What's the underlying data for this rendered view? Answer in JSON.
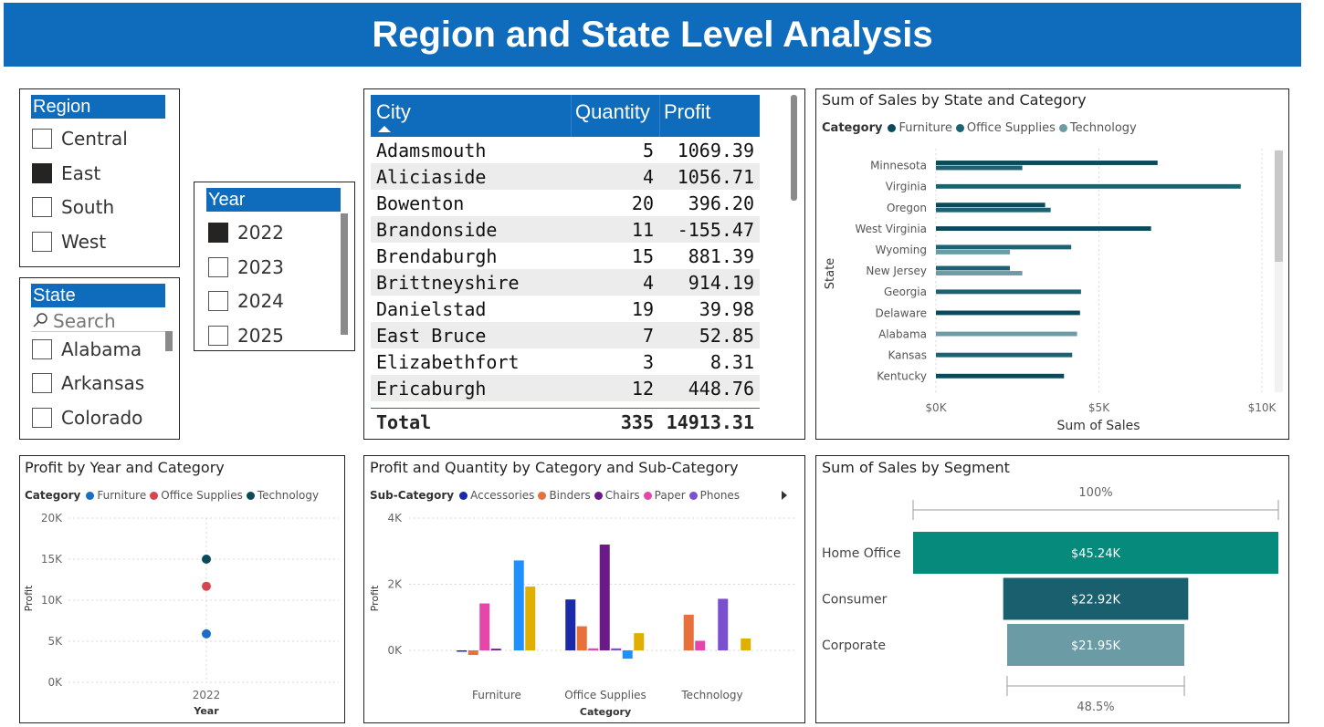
{
  "header": {
    "title": "Region and State Level Analysis"
  },
  "region_slicer": {
    "title": "Region",
    "items": [
      {
        "label": "Central",
        "checked": false
      },
      {
        "label": "East",
        "checked": true
      },
      {
        "label": "South",
        "checked": false
      },
      {
        "label": "West",
        "checked": false
      }
    ]
  },
  "year_slicer": {
    "title": "Year",
    "items": [
      {
        "label": "2022",
        "checked": true
      },
      {
        "label": "2023",
        "checked": false
      },
      {
        "label": "2024",
        "checked": false
      },
      {
        "label": "2025",
        "checked": false
      }
    ]
  },
  "state_slicer": {
    "title": "State",
    "search_placeholder": "Search",
    "items": [
      {
        "label": "Alabama",
        "checked": false
      },
      {
        "label": "Arkansas",
        "checked": false
      },
      {
        "label": "Colorado",
        "checked": false
      }
    ]
  },
  "city_table": {
    "columns": [
      "City",
      "Quantity",
      "Profit"
    ],
    "rows": [
      [
        "Adamsmouth",
        "5",
        "1069.39"
      ],
      [
        "Aliciaside",
        "4",
        "1056.71"
      ],
      [
        "Bowenton",
        "20",
        "396.20"
      ],
      [
        "Brandonside",
        "11",
        "-155.47"
      ],
      [
        "Brendaburgh",
        "15",
        "881.39"
      ],
      [
        "Brittneyshire",
        "4",
        "914.19"
      ],
      [
        "Danielstad",
        "19",
        "39.98"
      ],
      [
        "East Bruce",
        "7",
        "52.85"
      ],
      [
        "Elizabethfort",
        "3",
        "8.31"
      ],
      [
        "Ericaburgh",
        "12",
        "448.76"
      ]
    ],
    "total": {
      "label": "Total",
      "quantity": "335",
      "profit": "14913.31"
    }
  },
  "colors": {
    "title_bg": "#0f6cbd",
    "furniture_state": "#0b4a5a",
    "office_state": "#1d6272",
    "technology_state": "#6b9ba5",
    "furniture_dot": "#1a6fc4",
    "office_dot": "#d64550",
    "technology_dot": "#0b4a5a"
  },
  "chart_data": [
    {
      "id": "sales_by_state",
      "type": "bar",
      "orientation": "horizontal",
      "title": "Sum of Sales by State and Category",
      "legend_title": "Category",
      "xlabel": "Sum of Sales",
      "ylabel": "State",
      "xticks": [
        "$0K",
        "$5K",
        "$10K"
      ],
      "xlim": [
        0,
        10000
      ],
      "categories": [
        "Minnesota",
        "Virginia",
        "Oregon",
        "West Virginia",
        "Wyoming",
        "New Jersey",
        "Georgia",
        "Delaware",
        "Alabama",
        "Kansas",
        "Kentucky"
      ],
      "series": [
        {
          "name": "Furniture",
          "color": "#0b4a5a",
          "values": [
            6800,
            null,
            3350,
            6600,
            null,
            null,
            null,
            4420,
            null,
            null,
            3930
          ]
        },
        {
          "name": "Office Supplies",
          "color": "#1d6272",
          "values": [
            2650,
            9350,
            3520,
            null,
            4150,
            2270,
            4450,
            null,
            null,
            4180,
            null
          ]
        },
        {
          "name": "Technology",
          "color": "#6b9ba5",
          "values": [
            null,
            null,
            null,
            null,
            2270,
            2650,
            null,
            null,
            4330,
            null,
            null
          ]
        }
      ]
    },
    {
      "id": "profit_by_year",
      "type": "scatter",
      "title": "Profit by Year and Category",
      "legend_title": "Category",
      "xlabel": "Year",
      "ylabel": "Profit",
      "categories": [
        "2022"
      ],
      "yticks": [
        "0K",
        "5K",
        "10K",
        "15K",
        "20K"
      ],
      "ylim": [
        0,
        20000
      ],
      "series": [
        {
          "name": "Furniture",
          "color": "#1a6fc4",
          "values": [
            5900
          ]
        },
        {
          "name": "Office Supplies",
          "color": "#d64550",
          "values": [
            11700
          ]
        },
        {
          "name": "Technology",
          "color": "#0b4a5a",
          "values": [
            15000
          ]
        }
      ]
    },
    {
      "id": "profit_qty_by_subcat",
      "type": "bar",
      "title": "Profit and Quantity by Category and Sub-Category",
      "legend_title": "Sub-Category",
      "xlabel": "Category",
      "ylabel": "Profit",
      "categories": [
        "Furniture",
        "Office Supplies",
        "Technology"
      ],
      "yticks": [
        "0K",
        "2K",
        "4K"
      ],
      "ylim": [
        -300,
        4000
      ],
      "legend_visible": [
        "Accessories",
        "Binders",
        "Chairs",
        "Paper",
        "Phones"
      ],
      "series": [
        {
          "name": "Accessories",
          "color": "#1a2aa8",
          "values": [
            -30,
            1540,
            null
          ]
        },
        {
          "name": "Binders",
          "color": "#e8703a",
          "values": [
            -140,
            730,
            1080
          ]
        },
        {
          "name": "Paper",
          "color": "#e446a9",
          "values": [
            1420,
            60,
            290
          ]
        },
        {
          "name": "Chairs",
          "color": "#6b1a88",
          "values": [
            50,
            3200,
            null
          ]
        },
        {
          "name": "Phones",
          "color": "#7a4fd0",
          "values": [
            null,
            60,
            1560
          ]
        },
        {
          "name": "",
          "color": "#1e90ff",
          "values": [
            2720,
            -250,
            null
          ]
        },
        {
          "name": "",
          "color": "#e0b000",
          "values": [
            1930,
            520,
            360
          ]
        }
      ]
    },
    {
      "id": "sales_by_segment",
      "type": "bar",
      "subtype": "funnel",
      "title": "Sum of Sales by Segment",
      "categories": [
        "Home Office",
        "Consumer",
        "Corporate"
      ],
      "values": [
        45240,
        22920,
        21950
      ],
      "value_labels": [
        "$45.24K",
        "$22.92K",
        "$21.95K"
      ],
      "colors": [
        "#058a7c",
        "#1a5f6e",
        "#6b9ba5"
      ],
      "top_percent": "100%",
      "bottom_percent": "48.5%"
    }
  ]
}
